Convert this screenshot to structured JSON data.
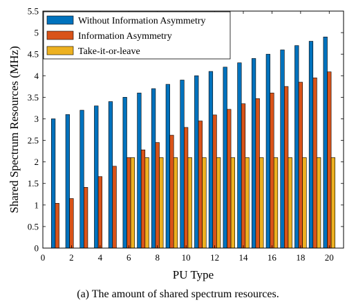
{
  "chart_data": {
    "type": "bar",
    "xlabel": "PU Type",
    "ylabel": "Shared Spectrum Resources (MHz)",
    "xlim": [
      0,
      21
    ],
    "ylim": [
      0,
      5.5
    ],
    "xticks": [
      0,
      2,
      4,
      6,
      8,
      10,
      12,
      14,
      16,
      18,
      20
    ],
    "yticks": [
      0,
      0.5,
      1,
      1.5,
      2,
      2.5,
      3,
      3.5,
      4,
      4.5,
      5,
      5.5
    ],
    "categories": [
      1,
      2,
      3,
      4,
      5,
      6,
      7,
      8,
      9,
      10,
      11,
      12,
      13,
      14,
      15,
      16,
      17,
      18,
      19,
      20
    ],
    "legend_position": "top-left",
    "grid": false,
    "series": [
      {
        "name": "Without Information Asymmetry",
        "color": "#0072BD",
        "values": [
          3.0,
          3.1,
          3.2,
          3.3,
          3.4,
          3.5,
          3.6,
          3.7,
          3.8,
          3.9,
          4.0,
          4.1,
          4.2,
          4.3,
          4.4,
          4.5,
          4.6,
          4.7,
          4.8,
          4.9
        ]
      },
      {
        "name": "Information Asymmetry",
        "color": "#D95319",
        "values": [
          1.04,
          1.15,
          1.41,
          1.66,
          1.9,
          2.1,
          2.28,
          2.45,
          2.62,
          2.8,
          2.95,
          3.09,
          3.22,
          3.35,
          3.47,
          3.6,
          3.75,
          3.85,
          3.95,
          4.09
        ]
      },
      {
        "name": "Take-it-or-leave",
        "color": "#EDB120",
        "values": [
          0,
          0,
          0,
          0,
          0,
          2.1,
          2.1,
          2.1,
          2.1,
          2.1,
          2.1,
          2.1,
          2.1,
          2.1,
          2.1,
          2.1,
          2.1,
          2.1,
          2.1,
          2.1
        ]
      }
    ]
  },
  "caption": "(a) The amount of shared spectrum resources."
}
